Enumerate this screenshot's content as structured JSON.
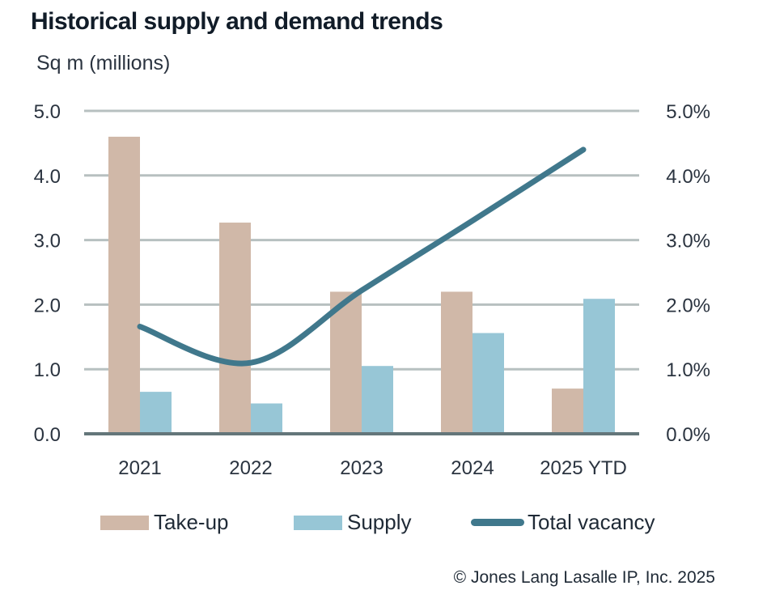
{
  "title": "Historical supply and demand trends",
  "unit_label": "Sq m (millions)",
  "copyright": "© Jones Lang Lasalle IP, Inc. 2025",
  "colors": {
    "takeup": "#d0b8a8",
    "supply": "#97c6d6",
    "vacancy": "#40788c",
    "grid": "#b7c0c0",
    "baseline": "#64767a"
  },
  "legend": [
    {
      "label": "Take-up",
      "key": "takeup"
    },
    {
      "label": "Supply",
      "key": "supply"
    },
    {
      "label": "Total vacancy",
      "key": "vacancy"
    }
  ],
  "chart_data": {
    "type": "bar",
    "title": "Historical supply and demand trends",
    "ylabel": "Sq m (millions)",
    "categories": [
      "2021",
      "2022",
      "2023",
      "2024",
      "2025 YTD"
    ],
    "series": [
      {
        "name": "Take-up",
        "type": "bar",
        "axis": "left",
        "values": [
          4.6,
          3.27,
          2.2,
          2.2,
          0.7
        ]
      },
      {
        "name": "Supply",
        "type": "bar",
        "axis": "left",
        "values": [
          0.65,
          0.47,
          1.05,
          1.56,
          2.09
        ]
      },
      {
        "name": "Total vacancy",
        "type": "line",
        "axis": "right",
        "unit": "%",
        "values": [
          1.66,
          1.1,
          2.22,
          3.3,
          4.4
        ]
      }
    ],
    "ylim": [
      0,
      5.0
    ],
    "y_ticks": [
      "0.0",
      "1.0",
      "2.0",
      "3.0",
      "4.0",
      "5.0"
    ],
    "y2lim": [
      0,
      5.0
    ],
    "y2_ticks": [
      "0.0%",
      "1.0%",
      "2.0%",
      "3.0%",
      "4.0%",
      "5.0%"
    ],
    "grid": true,
    "legend_position": "bottom"
  }
}
